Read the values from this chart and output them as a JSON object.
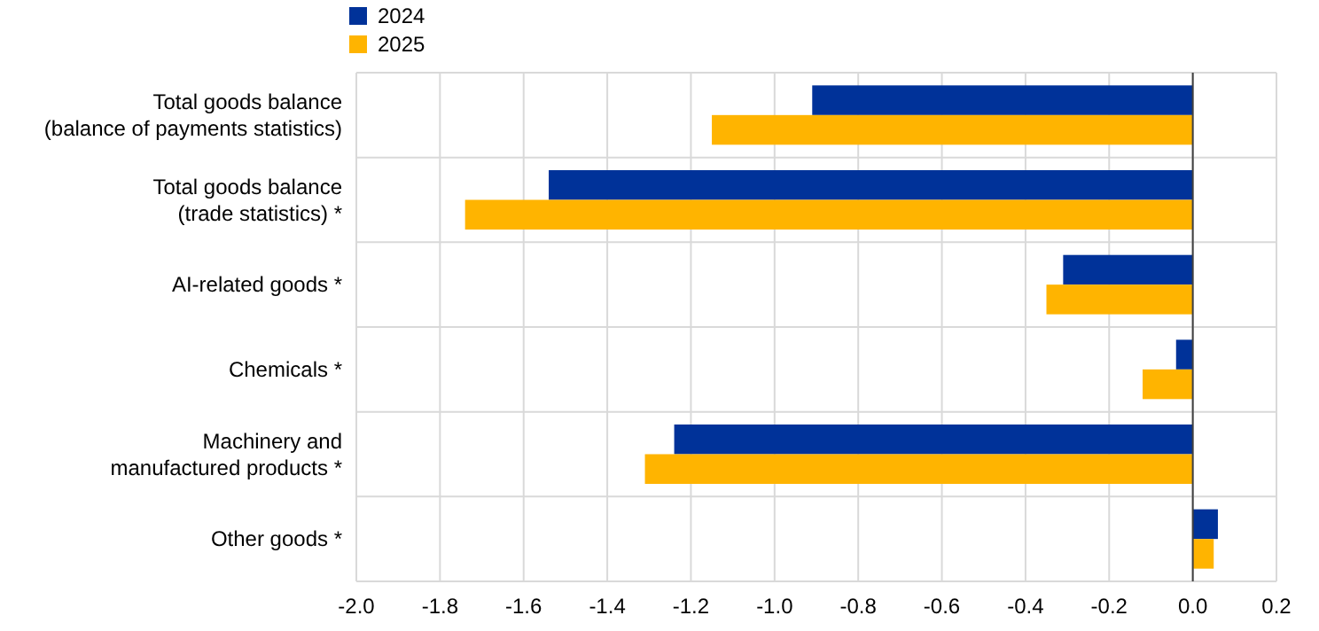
{
  "chart_data": {
    "type": "bar",
    "orientation": "horizontal",
    "categories": [
      "Total goods balance\n(balance of payments statistics)",
      "Total goods balance\n(trade statistics) *",
      "AI-related goods *",
      "Chemicals *",
      "Machinery and\nmanufactured products *",
      "Other goods *"
    ],
    "series": [
      {
        "name": "2024",
        "color": "#003299",
        "values": [
          -0.91,
          -1.54,
          -0.31,
          -0.04,
          -1.24,
          0.06
        ]
      },
      {
        "name": "2025",
        "color": "#ffb400",
        "values": [
          -1.15,
          -1.74,
          -0.35,
          -0.12,
          -1.31,
          0.05
        ]
      }
    ],
    "xlim": [
      -2.0,
      0.2
    ],
    "xticks": [
      {
        "value": -2,
        "label": "-2.0"
      },
      -1.8,
      -1.6,
      -1.4,
      -1.2,
      {
        "value": -1,
        "label": "-1.0"
      },
      -0.8,
      -0.6,
      -0.4,
      -0.2,
      {
        "value": 0,
        "label": "0.0"
      },
      0.2
    ],
    "grid": true,
    "legend": "top left"
  }
}
